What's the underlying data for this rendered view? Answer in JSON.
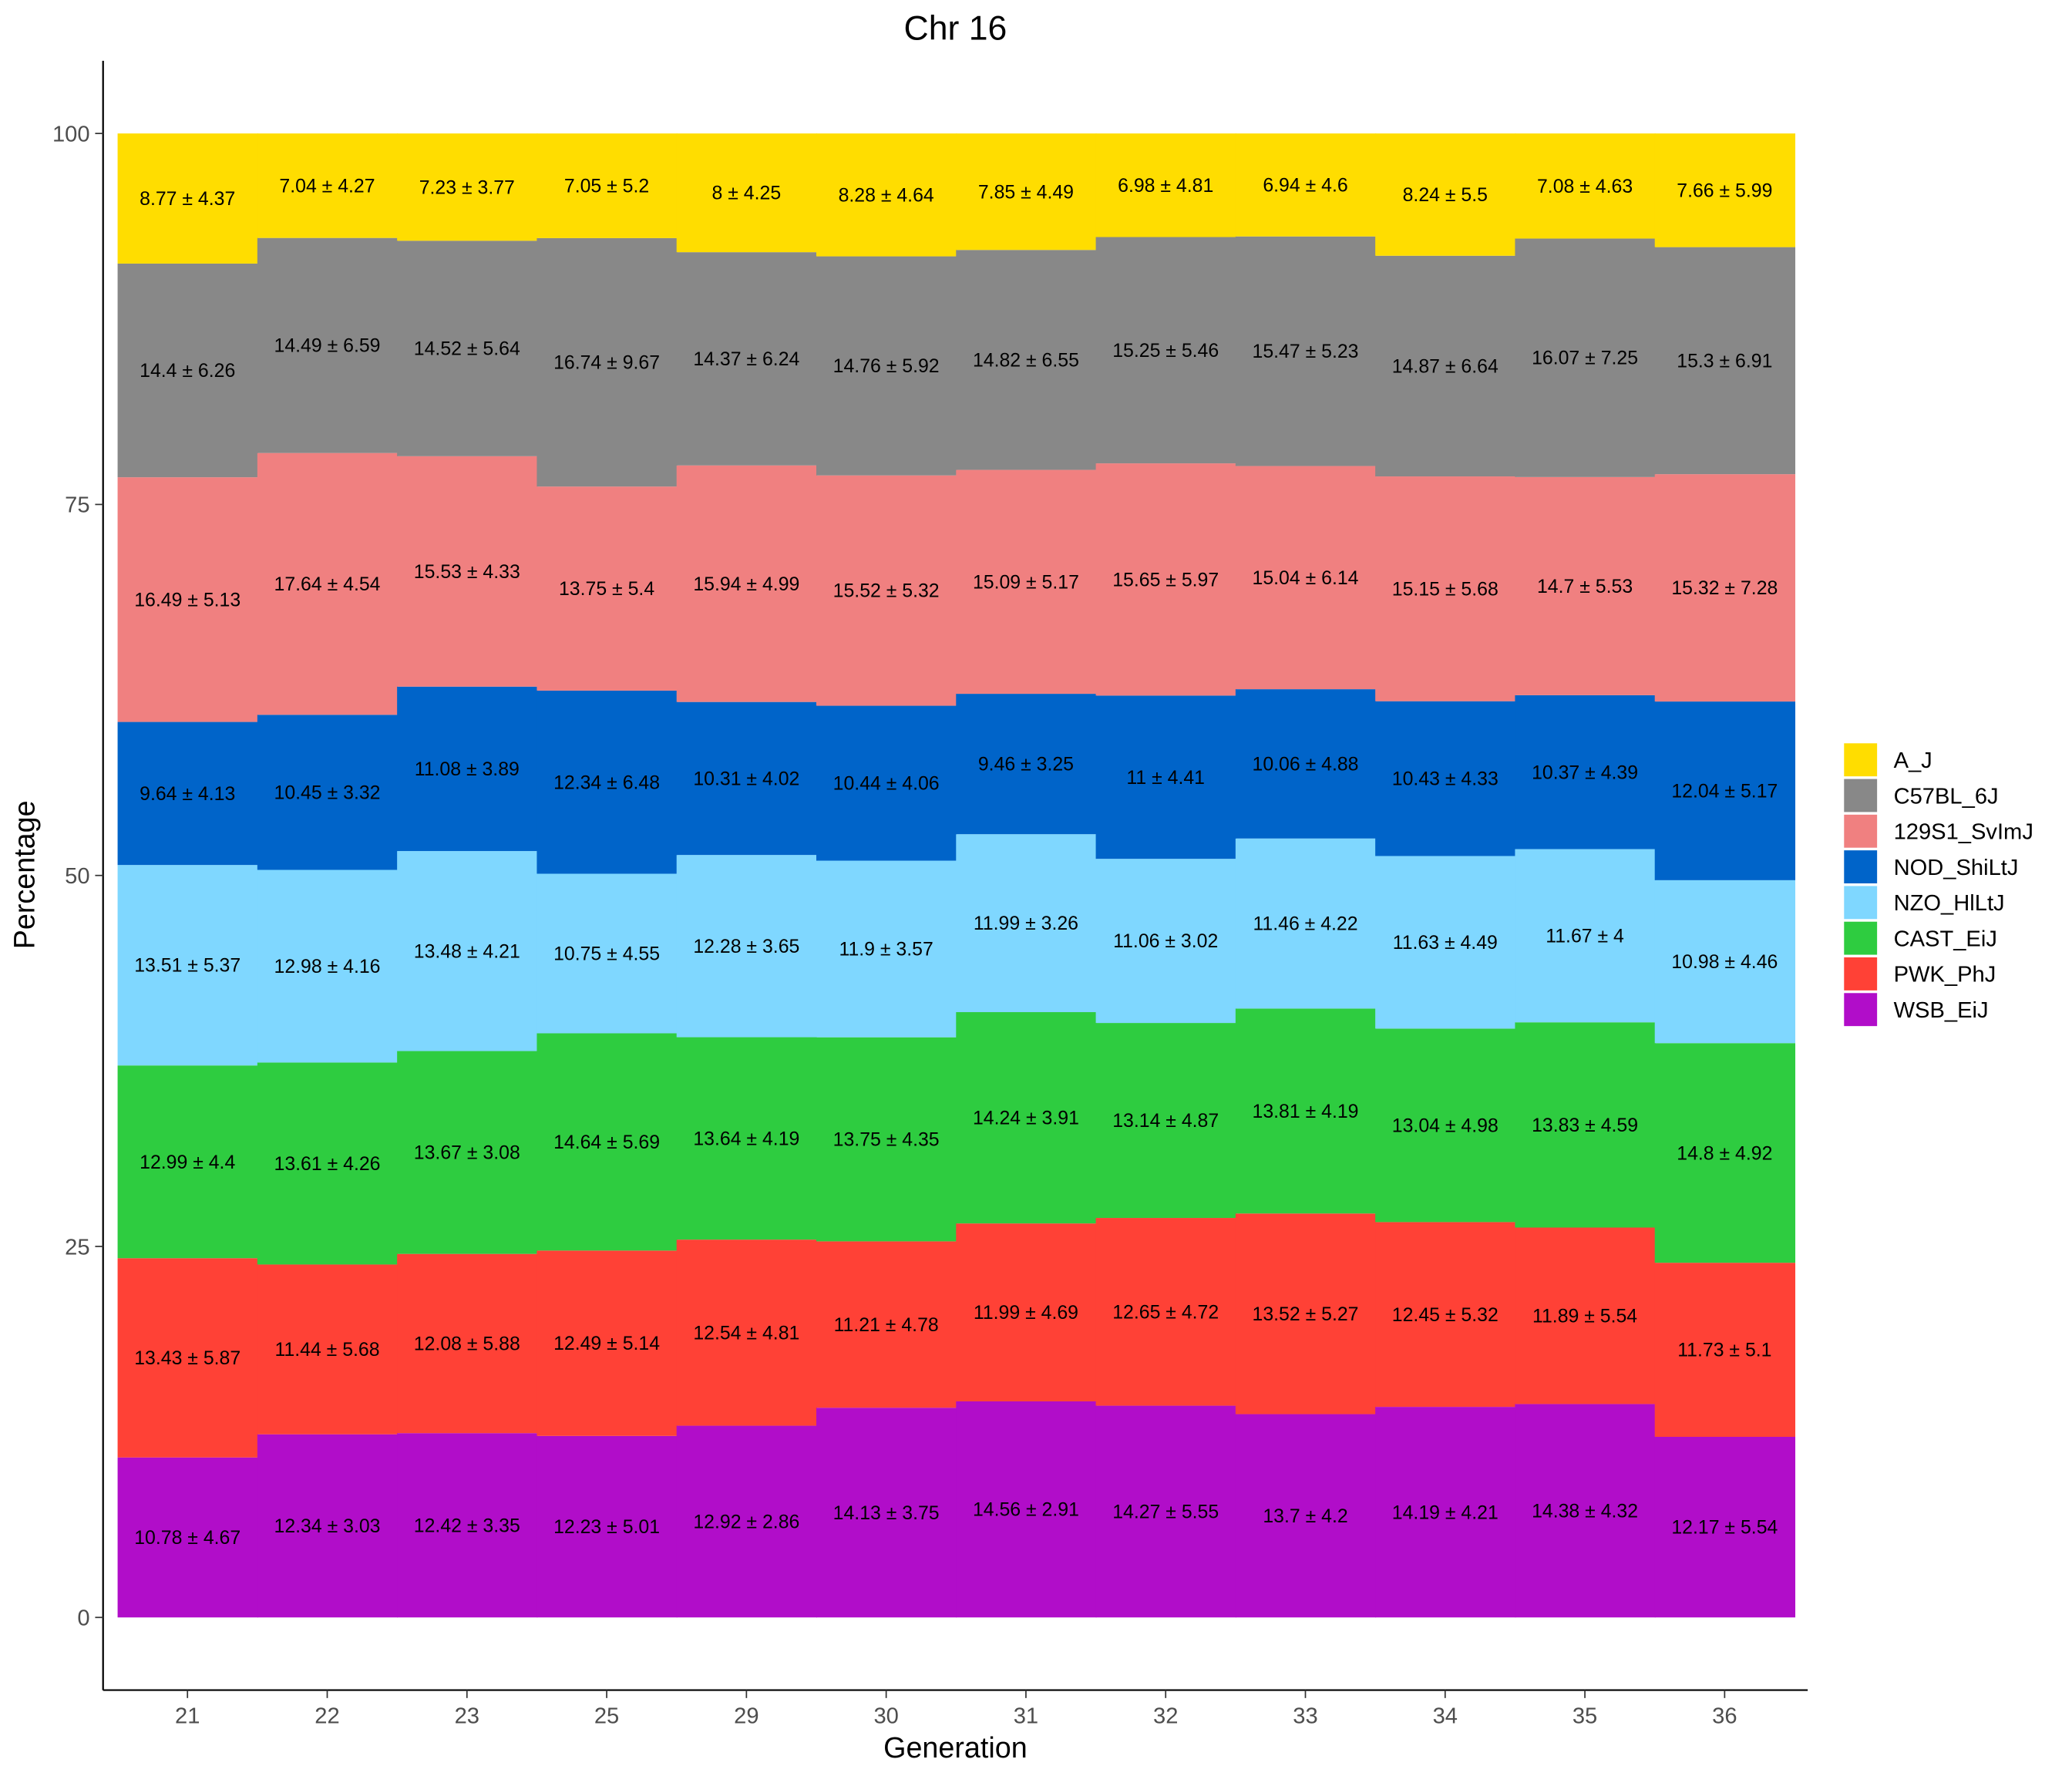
{
  "chart_data": {
    "type": "bar",
    "stacked": "fill",
    "title": "Chr 16",
    "xlabel": "Generation",
    "ylabel": "Percentage",
    "ylim": [
      0,
      100
    ],
    "yticks": [
      0,
      25,
      50,
      75,
      100
    ],
    "grid": false,
    "legend_position": "right",
    "categories": [
      "21",
      "22",
      "23",
      "25",
      "29",
      "30",
      "31",
      "32",
      "33",
      "34",
      "35",
      "36"
    ],
    "series": [
      {
        "name": "A_J",
        "color": "#FFDD00",
        "values": [
          8.77,
          7.04,
          7.23,
          7.05,
          8,
          8.28,
          7.85,
          6.98,
          6.94,
          8.24,
          7.08,
          7.66
        ],
        "sd": [
          4.37,
          4.27,
          3.77,
          5.2,
          4.25,
          4.64,
          4.49,
          4.81,
          4.6,
          5.5,
          4.63,
          5.99
        ]
      },
      {
        "name": "C57BL_6J",
        "color": "#888888",
        "values": [
          14.4,
          14.49,
          14.52,
          16.74,
          14.37,
          14.76,
          14.82,
          15.25,
          15.47,
          14.87,
          16.07,
          15.3
        ],
        "sd": [
          6.26,
          6.59,
          5.64,
          9.67,
          6.24,
          5.92,
          6.55,
          5.46,
          5.23,
          6.64,
          7.25,
          6.91
        ]
      },
      {
        "name": "129S1_SvImJ",
        "color": "#F08080",
        "values": [
          16.49,
          17.64,
          15.53,
          13.75,
          15.94,
          15.52,
          15.09,
          15.65,
          15.04,
          15.15,
          14.7,
          15.32
        ],
        "sd": [
          5.13,
          4.54,
          4.33,
          5.4,
          4.99,
          5.32,
          5.17,
          5.97,
          6.14,
          5.68,
          5.53,
          7.28
        ]
      },
      {
        "name": "NOD_ShiLtJ",
        "color": "#0064C9",
        "values": [
          9.64,
          10.45,
          11.08,
          12.34,
          10.31,
          10.44,
          9.46,
          11,
          10.06,
          10.43,
          10.37,
          12.04
        ],
        "sd": [
          4.13,
          3.32,
          3.89,
          6.48,
          4.02,
          4.06,
          3.25,
          4.41,
          4.88,
          4.33,
          4.39,
          5.17
        ]
      },
      {
        "name": "NZO_HlLtJ",
        "color": "#7FD7FF",
        "values": [
          13.51,
          12.98,
          13.48,
          10.75,
          12.28,
          11.9,
          11.99,
          11.06,
          11.46,
          11.63,
          11.67,
          10.98
        ],
        "sd": [
          5.37,
          4.16,
          4.21,
          4.55,
          3.65,
          3.57,
          3.26,
          3.02,
          4.22,
          4.49,
          4,
          4.46
        ]
      },
      {
        "name": "CAST_EiJ",
        "color": "#2ECC40",
        "values": [
          12.99,
          13.61,
          13.67,
          14.64,
          13.64,
          13.75,
          14.24,
          13.14,
          13.81,
          13.04,
          13.83,
          14.8
        ],
        "sd": [
          4.4,
          4.26,
          3.08,
          5.69,
          4.19,
          4.35,
          3.91,
          4.87,
          4.19,
          4.98,
          4.59,
          4.92
        ]
      },
      {
        "name": "PWK_PhJ",
        "color": "#FF4136",
        "values": [
          13.43,
          11.44,
          12.08,
          12.49,
          12.54,
          11.21,
          11.99,
          12.65,
          13.52,
          12.45,
          11.89,
          11.73
        ],
        "sd": [
          5.87,
          5.68,
          5.88,
          5.14,
          4.81,
          4.78,
          4.69,
          4.72,
          5.27,
          5.32,
          5.54,
          5.1
        ]
      },
      {
        "name": "WSB_EiJ",
        "color": "#B10DC9",
        "values": [
          10.78,
          12.34,
          12.42,
          12.23,
          12.92,
          14.13,
          14.56,
          14.27,
          13.7,
          14.19,
          14.38,
          12.17
        ],
        "sd": [
          4.67,
          3.03,
          3.35,
          5.01,
          2.86,
          3.75,
          2.91,
          5.55,
          4.2,
          4.21,
          4.32,
          5.54
        ]
      }
    ],
    "data_labels": "mean ± sd"
  }
}
